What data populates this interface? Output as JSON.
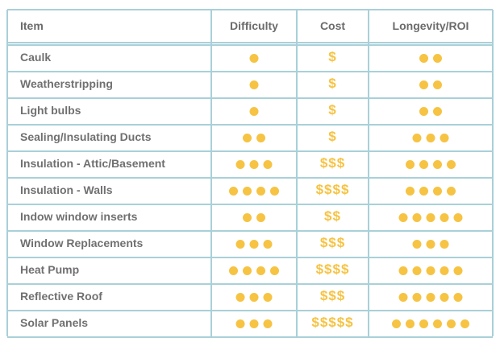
{
  "table": {
    "header": [
      "Item",
      "Difficulty",
      "Cost",
      "Longevity/ROI"
    ],
    "rows": [
      {
        "item": "Caulk",
        "difficulty": 1,
        "cost": "$",
        "longevity": 2
      },
      {
        "item": "Weatherstripping",
        "difficulty": 1,
        "cost": "$",
        "longevity": 2
      },
      {
        "item": "Light bulbs",
        "difficulty": 1,
        "cost": "$",
        "longevity": 2
      },
      {
        "item": "Sealing/Insulating Ducts",
        "difficulty": 2,
        "cost": "$",
        "longevity": 3
      },
      {
        "item": "Insulation - Attic/Basement",
        "difficulty": 3,
        "cost": "$$$",
        "longevity": 4
      },
      {
        "item": "Insulation - Walls",
        "difficulty": 4,
        "cost": "$$$$",
        "longevity": 4
      },
      {
        "item": "Indow window inserts",
        "difficulty": 2,
        "cost": "$$",
        "longevity": 5
      },
      {
        "item": "Window Replacements",
        "difficulty": 3,
        "cost": "$$$",
        "longevity": 3
      },
      {
        "item": "Heat Pump",
        "difficulty": 4,
        "cost": "$$$$",
        "longevity": 5
      },
      {
        "item": "Reflective Roof",
        "difficulty": 3,
        "cost": "$$$",
        "longevity": 5
      },
      {
        "item": "Solar Panels",
        "difficulty": 3,
        "cost": "$$$$$",
        "longevity": 6
      }
    ]
  }
}
